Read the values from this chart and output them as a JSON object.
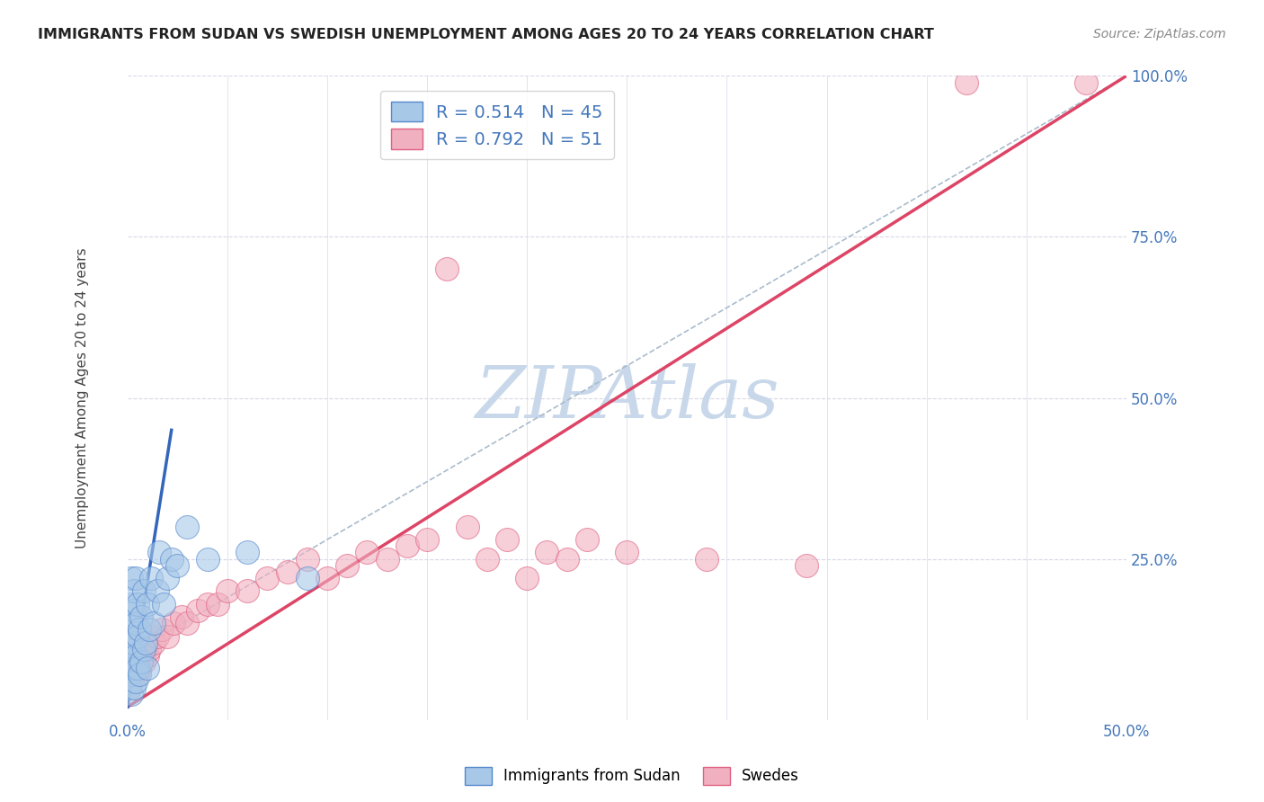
{
  "title": "IMMIGRANTS FROM SUDAN VS SWEDISH UNEMPLOYMENT AMONG AGES 20 TO 24 YEARS CORRELATION CHART",
  "source": "Source: ZipAtlas.com",
  "ylabel": "Unemployment Among Ages 20 to 24 years",
  "xlim": [
    0.0,
    0.5
  ],
  "ylim": [
    0.0,
    1.0
  ],
  "xticks": [
    0.0,
    0.05,
    0.1,
    0.15,
    0.2,
    0.25,
    0.3,
    0.35,
    0.4,
    0.45,
    0.5
  ],
  "yticks": [
    0.0,
    0.25,
    0.5,
    0.75,
    1.0
  ],
  "blue_R": 0.514,
  "blue_N": 45,
  "pink_R": 0.792,
  "pink_N": 51,
  "blue_color": "#a8c8e8",
  "pink_color": "#f0b0c0",
  "blue_edge_color": "#5588cc",
  "pink_edge_color": "#e06080",
  "blue_line_color": "#3366bb",
  "pink_line_color": "#dd4466",
  "dashed_line_color": "#aabbcc",
  "watermark": "ZIPAtlas",
  "watermark_color": "#c8d8ea",
  "background_color": "#ffffff",
  "grid_color": "#d8d8e8",
  "legend_label_blue": "Immigrants from Sudan",
  "legend_label_pink": "Swedes",
  "label_color": "#4477bb",
  "blue_scatter_x": [
    0.001,
    0.001,
    0.001,
    0.001,
    0.001,
    0.002,
    0.002,
    0.002,
    0.002,
    0.002,
    0.002,
    0.003,
    0.003,
    0.003,
    0.003,
    0.003,
    0.004,
    0.004,
    0.004,
    0.004,
    0.005,
    0.005,
    0.005,
    0.006,
    0.006,
    0.007,
    0.007,
    0.008,
    0.008,
    0.009,
    0.01,
    0.01,
    0.011,
    0.012,
    0.013,
    0.015,
    0.016,
    0.018,
    0.02,
    0.022,
    0.025,
    0.03,
    0.04,
    0.06,
    0.09
  ],
  "blue_scatter_y": [
    0.05,
    0.08,
    0.1,
    0.12,
    0.15,
    0.04,
    0.07,
    0.1,
    0.13,
    0.18,
    0.22,
    0.05,
    0.08,
    0.12,
    0.17,
    0.2,
    0.06,
    0.1,
    0.15,
    0.22,
    0.08,
    0.13,
    0.18,
    0.07,
    0.14,
    0.09,
    0.16,
    0.11,
    0.2,
    0.12,
    0.08,
    0.18,
    0.14,
    0.22,
    0.15,
    0.2,
    0.26,
    0.18,
    0.22,
    0.25,
    0.24,
    0.3,
    0.25,
    0.26,
    0.22
  ],
  "pink_scatter_x": [
    0.001,
    0.001,
    0.002,
    0.002,
    0.003,
    0.003,
    0.004,
    0.004,
    0.005,
    0.005,
    0.006,
    0.006,
    0.007,
    0.008,
    0.009,
    0.01,
    0.011,
    0.013,
    0.015,
    0.017,
    0.02,
    0.023,
    0.027,
    0.03,
    0.035,
    0.04,
    0.045,
    0.05,
    0.06,
    0.07,
    0.08,
    0.09,
    0.1,
    0.11,
    0.12,
    0.13,
    0.14,
    0.15,
    0.16,
    0.17,
    0.18,
    0.19,
    0.2,
    0.21,
    0.22,
    0.23,
    0.25,
    0.29,
    0.34,
    0.42,
    0.48
  ],
  "pink_scatter_y": [
    0.05,
    0.07,
    0.06,
    0.09,
    0.07,
    0.1,
    0.08,
    0.11,
    0.07,
    0.1,
    0.08,
    0.12,
    0.1,
    0.09,
    0.11,
    0.1,
    0.11,
    0.12,
    0.13,
    0.14,
    0.13,
    0.15,
    0.16,
    0.15,
    0.17,
    0.18,
    0.18,
    0.2,
    0.2,
    0.22,
    0.23,
    0.25,
    0.22,
    0.24,
    0.26,
    0.25,
    0.27,
    0.28,
    0.7,
    0.3,
    0.25,
    0.28,
    0.22,
    0.26,
    0.25,
    0.28,
    0.26,
    0.25,
    0.24,
    0.99,
    0.99
  ],
  "blue_line_x": [
    0.0,
    0.022
  ],
  "blue_line_y": [
    0.02,
    0.45
  ],
  "pink_line_x": [
    0.0,
    0.5
  ],
  "pink_line_y": [
    0.02,
    1.0
  ],
  "dashed_line_x": [
    0.0,
    0.5
  ],
  "dashed_line_y": [
    0.1,
    1.0
  ]
}
